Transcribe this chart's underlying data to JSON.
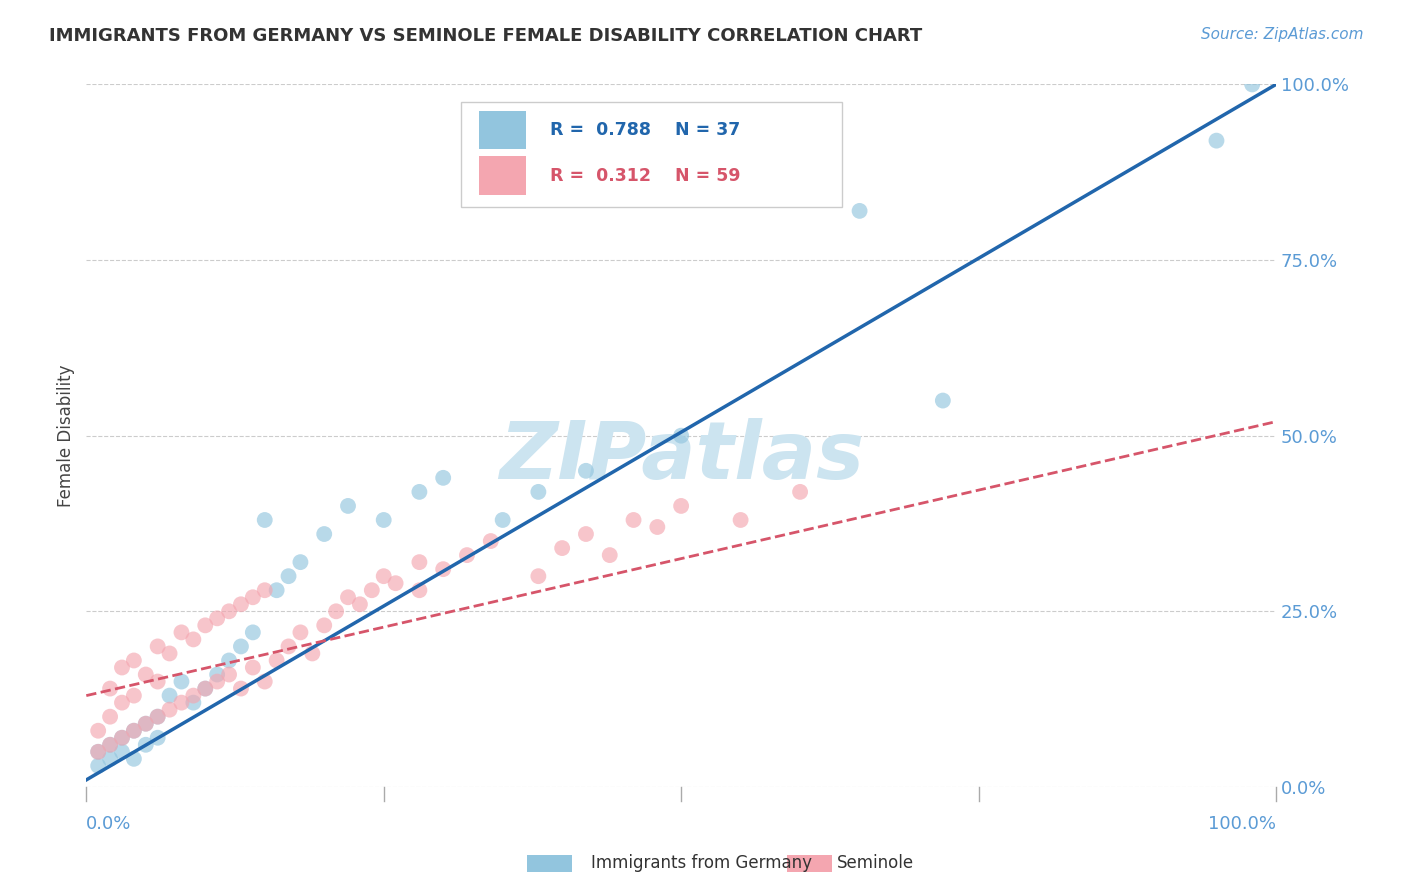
{
  "title": "IMMIGRANTS FROM GERMANY VS SEMINOLE FEMALE DISABILITY CORRELATION CHART",
  "source": "Source: ZipAtlas.com",
  "ylabel": "Female Disability",
  "yaxis_labels": [
    "0.0%",
    "25.0%",
    "50.0%",
    "75.0%",
    "100.0%"
  ],
  "yaxis_values": [
    0,
    0.25,
    0.5,
    0.75,
    1.0
  ],
  "xaxis_labels": [
    "0.0%",
    "100.0%"
  ],
  "xaxis_ticks": [
    0.0,
    1.0
  ],
  "blue_R": "0.788",
  "blue_N": "37",
  "pink_R": "0.312",
  "pink_N": "59",
  "legend_label_blue": "Immigrants from Germany",
  "legend_label_pink": "Seminole",
  "blue_color": "#92c5de",
  "pink_color": "#f4a6b0",
  "blue_line_color": "#2166ac",
  "pink_line_color": "#d6556a",
  "title_color": "#333333",
  "axis_tick_color": "#5b9bd5",
  "watermark_color": "#cce4f0",
  "grid_color": "#cccccc",
  "background_color": "#ffffff",
  "blue_line_x": [
    0.0,
    1.0
  ],
  "blue_line_y": [
    0.01,
    1.0
  ],
  "pink_line_x": [
    0.0,
    1.0
  ],
  "pink_line_y": [
    0.13,
    0.52
  ],
  "blue_scatter_x": [
    0.01,
    0.01,
    0.02,
    0.02,
    0.03,
    0.03,
    0.04,
    0.04,
    0.05,
    0.05,
    0.06,
    0.06,
    0.07,
    0.08,
    0.09,
    0.1,
    0.11,
    0.12,
    0.13,
    0.14,
    0.15,
    0.16,
    0.17,
    0.18,
    0.2,
    0.22,
    0.25,
    0.28,
    0.3,
    0.35,
    0.38,
    0.42,
    0.5,
    0.65,
    0.72,
    0.95,
    0.98
  ],
  "blue_scatter_y": [
    0.03,
    0.05,
    0.04,
    0.06,
    0.05,
    0.07,
    0.04,
    0.08,
    0.06,
    0.09,
    0.07,
    0.1,
    0.13,
    0.15,
    0.12,
    0.14,
    0.16,
    0.18,
    0.2,
    0.22,
    0.38,
    0.28,
    0.3,
    0.32,
    0.36,
    0.4,
    0.38,
    0.42,
    0.44,
    0.38,
    0.42,
    0.45,
    0.5,
    0.82,
    0.55,
    0.92,
    1.0
  ],
  "pink_scatter_x": [
    0.01,
    0.01,
    0.02,
    0.02,
    0.02,
    0.03,
    0.03,
    0.03,
    0.04,
    0.04,
    0.04,
    0.05,
    0.05,
    0.06,
    0.06,
    0.06,
    0.07,
    0.07,
    0.08,
    0.08,
    0.09,
    0.09,
    0.1,
    0.1,
    0.11,
    0.11,
    0.12,
    0.12,
    0.13,
    0.13,
    0.14,
    0.14,
    0.15,
    0.15,
    0.16,
    0.17,
    0.18,
    0.19,
    0.2,
    0.21,
    0.22,
    0.23,
    0.24,
    0.25,
    0.26,
    0.28,
    0.3,
    0.32,
    0.34,
    0.38,
    0.4,
    0.42,
    0.44,
    0.46,
    0.48,
    0.5,
    0.55,
    0.6,
    0.28
  ],
  "pink_scatter_y": [
    0.05,
    0.08,
    0.06,
    0.1,
    0.14,
    0.07,
    0.12,
    0.17,
    0.08,
    0.13,
    0.18,
    0.09,
    0.16,
    0.1,
    0.15,
    0.2,
    0.11,
    0.19,
    0.12,
    0.22,
    0.13,
    0.21,
    0.14,
    0.23,
    0.15,
    0.24,
    0.16,
    0.25,
    0.14,
    0.26,
    0.17,
    0.27,
    0.15,
    0.28,
    0.18,
    0.2,
    0.22,
    0.19,
    0.23,
    0.25,
    0.27,
    0.26,
    0.28,
    0.3,
    0.29,
    0.32,
    0.31,
    0.33,
    0.35,
    0.3,
    0.34,
    0.36,
    0.33,
    0.38,
    0.37,
    0.4,
    0.38,
    0.42,
    0.28
  ]
}
